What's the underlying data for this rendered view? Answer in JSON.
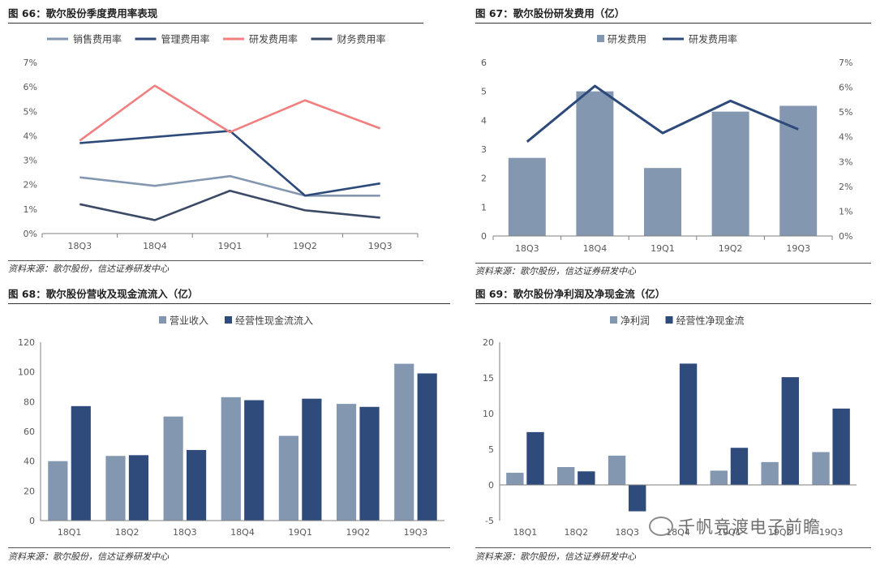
{
  "panels": {
    "p66": {
      "title": "图 66：歌尔股份季度费用率表现",
      "source": "资料来源：歌尔股份，信达证券研发中心"
    },
    "p67": {
      "title": "图 67：歌尔股份研发费用（亿）",
      "source": "资料来源：歌尔股份，信达证券研发中心"
    },
    "p68": {
      "title": "图 68：歌尔股份营收及现金流流入（亿）",
      "source": "资料来源：歌尔股份，信达证券研发中心"
    },
    "p69": {
      "title": "图 69：歌尔股份净利润及净现金流（亿）",
      "source": "资料来源：歌尔股份，信达证券研发中心"
    }
  },
  "watermark": "千帆竞渡电子前瞻",
  "colors": {
    "sales": "#8497b0",
    "mgmt": "#2e4a7a",
    "rnd_rate": "#f08080",
    "fin": "#3c4a66",
    "bar_light": "#8497b0",
    "bar_dark": "#2f4b7c",
    "grid": "#d9d9d9",
    "axis": "#7f7f7f"
  },
  "chart_data": [
    {
      "id": "p66",
      "type": "line",
      "categories": [
        "18Q3",
        "18Q4",
        "19Q1",
        "19Q2",
        "19Q3"
      ],
      "ylim": [
        0,
        7
      ],
      "yticks": [
        "0%",
        "1%",
        "2%",
        "3%",
        "4%",
        "5%",
        "6%",
        "7%"
      ],
      "series": [
        {
          "name": "销售费用率",
          "values": [
            2.3,
            1.95,
            2.35,
            1.55,
            1.55
          ],
          "color": "#8497b0"
        },
        {
          "name": "管理费用率",
          "values": [
            3.7,
            3.95,
            4.2,
            1.55,
            2.05
          ],
          "color": "#2e4a7a"
        },
        {
          "name": "研发费用率",
          "values": [
            3.8,
            6.05,
            4.15,
            5.45,
            4.3
          ],
          "color": "#f08080"
        },
        {
          "name": "财务费用率",
          "values": [
            1.2,
            0.55,
            1.75,
            0.95,
            0.65
          ],
          "color": "#3c4a66"
        }
      ]
    },
    {
      "id": "p67",
      "type": "bar+line",
      "categories": [
        "18Q3",
        "18Q4",
        "19Q1",
        "19Q2",
        "19Q3"
      ],
      "ylim": [
        0,
        6
      ],
      "yticks": [
        "0",
        "1",
        "2",
        "3",
        "4",
        "5",
        "6"
      ],
      "y2lim": [
        0,
        7
      ],
      "y2ticks": [
        "0%",
        "1%",
        "2%",
        "3%",
        "4%",
        "5%",
        "6%",
        "7%"
      ],
      "bar_series": {
        "name": "研发费用",
        "values": [
          2.7,
          5.0,
          2.35,
          4.3,
          4.5
        ],
        "color": "#8497b0"
      },
      "line_series": {
        "name": "研发费用率",
        "values": [
          3.8,
          6.05,
          4.15,
          5.45,
          4.3
        ],
        "color": "#2e4a7a"
      }
    },
    {
      "id": "p68",
      "type": "bar",
      "categories": [
        "18Q1",
        "18Q2",
        "18Q3",
        "18Q4",
        "19Q1",
        "19Q2",
        "19Q3"
      ],
      "ylim": [
        0,
        120
      ],
      "yticks": [
        "0",
        "20",
        "40",
        "60",
        "80",
        "100",
        "120"
      ],
      "series": [
        {
          "name": "营业收入",
          "values": [
            40,
            43.5,
            70,
            83,
            57,
            78.5,
            105.5
          ],
          "color": "#8497b0"
        },
        {
          "name": "经营性现金流流入",
          "values": [
            77,
            44,
            47.5,
            81,
            82,
            76.5,
            99
          ],
          "color": "#2f4b7c"
        }
      ]
    },
    {
      "id": "p69",
      "type": "bar",
      "categories": [
        "18Q1",
        "18Q2",
        "18Q3",
        "18Q4",
        "19Q1",
        "19Q2",
        "19Q3"
      ],
      "ylim": [
        -5,
        20
      ],
      "yticks": [
        "-5",
        "0",
        "5",
        "10",
        "15",
        "20"
      ],
      "series": [
        {
          "name": "净利润",
          "values": [
            1.7,
            2.5,
            4.1,
            0,
            2.0,
            3.2,
            4.6
          ],
          "color": "#8497b0"
        },
        {
          "name": "经营性净现金流",
          "values": [
            7.4,
            1.9,
            -3.7,
            17.0,
            5.2,
            15.1,
            10.7
          ],
          "color": "#2f4b7c"
        }
      ]
    }
  ]
}
